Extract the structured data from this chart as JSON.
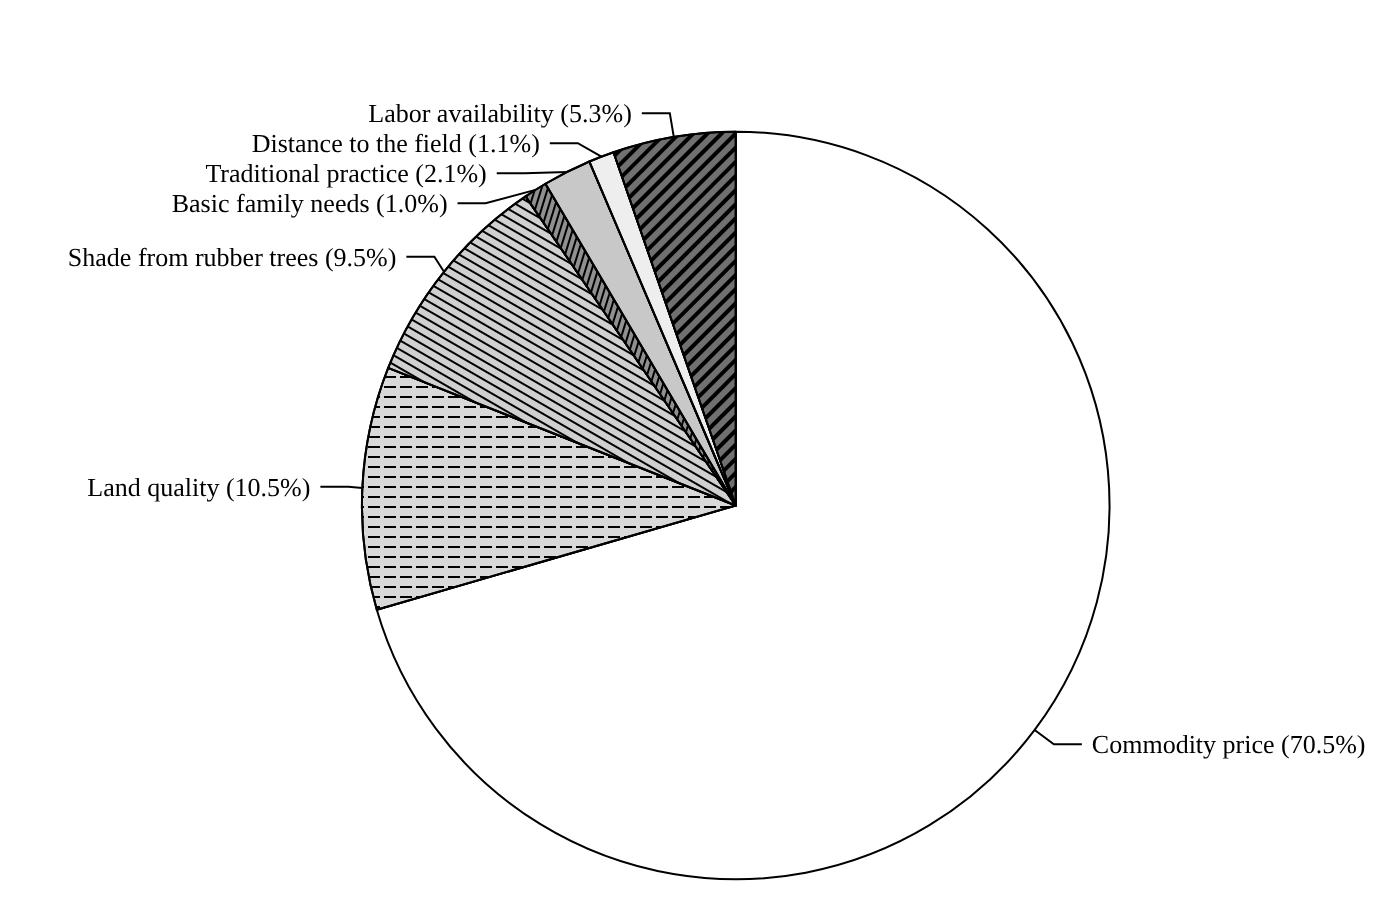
{
  "chart_data": {
    "type": "pie",
    "categories": [
      "Commodity price",
      "Land quality",
      "Shade from rubber trees",
      "Basic family needs",
      "Traditional practice",
      "Distance to the field",
      "Labor availability"
    ],
    "values": [
      70.5,
      10.5,
      9.5,
      1.0,
      2.1,
      1.1,
      5.3
    ],
    "value_labels": [
      "(70.5%)",
      "(10.5%)",
      "(9.5%)",
      "(1.0%)",
      "(2.1%)",
      "(1.1%)",
      "(5.3%)"
    ],
    "colors": [
      "#ffffff",
      "#d8d8d8",
      "#d0d0d0",
      "#909090",
      "#c8c8c8",
      "#eeeeee",
      "#707070"
    ],
    "legend": false
  }
}
